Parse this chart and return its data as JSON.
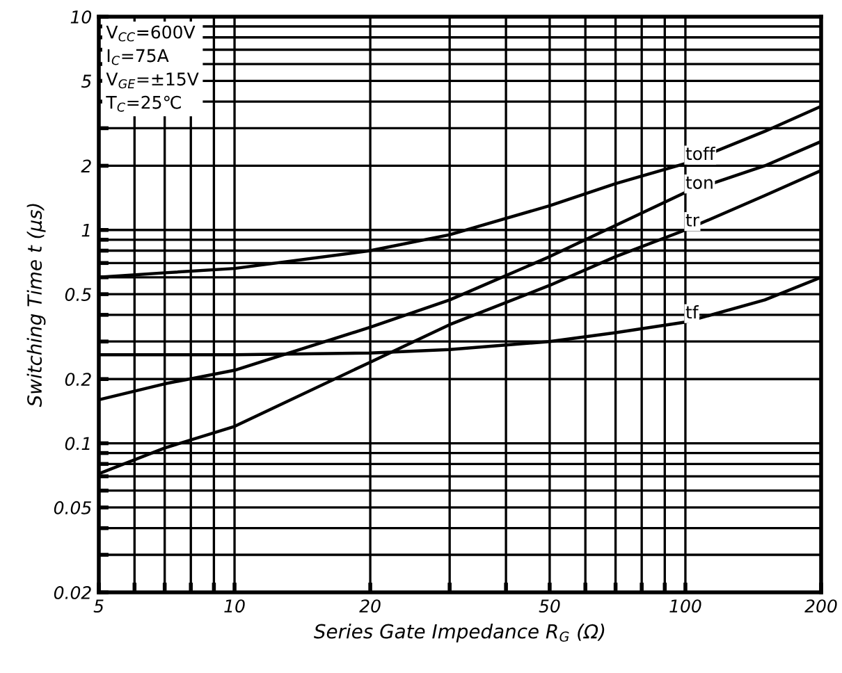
{
  "chart_data": {
    "type": "line",
    "xlabel": "Series Gate Impedance R$_{G}$ (Ω)",
    "ylabel": "Switching Time t (μs)",
    "log": "xy",
    "grid": true,
    "legend": false,
    "marker": "none",
    "line_style": "solid",
    "xlim": [
      5,
      200
    ],
    "ylim": [
      0.02,
      10
    ],
    "xticks": [
      5,
      {
        "value": 6,
        "label": null
      },
      {
        "value": 7,
        "label": null
      },
      {
        "value": 8,
        "label": null
      },
      {
        "value": 9,
        "label": null
      },
      10,
      20,
      {
        "value": 30,
        "label": null
      },
      {
        "value": 40,
        "label": null
      },
      50,
      {
        "value": 60,
        "label": null
      },
      {
        "value": 70,
        "label": null
      },
      {
        "value": 80,
        "label": null
      },
      {
        "value": 90,
        "label": null
      },
      100,
      200
    ],
    "yticks": [
      0.02,
      {
        "value": 0.03,
        "label": null
      },
      {
        "value": 0.04,
        "label": null
      },
      0.05,
      {
        "value": 0.06,
        "label": null
      },
      {
        "value": 0.07,
        "label": null
      },
      {
        "value": 0.08,
        "label": null
      },
      {
        "value": 0.09,
        "label": null
      },
      0.1,
      0.2,
      {
        "value": 0.3,
        "label": null
      },
      {
        "value": 0.4,
        "label": null
      },
      0.5,
      {
        "value": 0.6,
        "label": null
      },
      {
        "value": 0.7,
        "label": null
      },
      {
        "value": 0.8,
        "label": null
      },
      {
        "value": 0.9,
        "label": null
      },
      1,
      2,
      {
        "value": 3,
        "label": null
      },
      {
        "value": 4,
        "label": null
      },
      5,
      {
        "value": 6,
        "label": null
      },
      {
        "value": 7,
        "label": null
      },
      {
        "value": 8,
        "label": null
      },
      {
        "value": 9,
        "label": null
      },
      10
    ],
    "x": [
      5,
      7,
      10,
      20,
      30,
      50,
      70,
      100,
      150,
      200
    ],
    "series": [
      {
        "name": "toff",
        "color": "#000000",
        "values": [
          0.6,
          0.63,
          0.66,
          0.8,
          0.95,
          1.3,
          1.65,
          2.05,
          2.9,
          3.8
        ]
      },
      {
        "name": "ton",
        "color": "#000000",
        "values": [
          0.16,
          0.19,
          0.22,
          0.35,
          0.47,
          0.75,
          1.05,
          1.5,
          2.0,
          2.6
        ]
      },
      {
        "name": "tr",
        "color": "#000000",
        "values": [
          0.072,
          0.095,
          0.12,
          0.24,
          0.36,
          0.55,
          0.75,
          1.0,
          1.45,
          1.9
        ]
      },
      {
        "name": "tf",
        "color": "#000000",
        "values": [
          0.26,
          0.26,
          0.26,
          0.265,
          0.275,
          0.3,
          0.33,
          0.37,
          0.47,
          0.6
        ]
      }
    ],
    "annotations": [
      "V$_{CC}$=600V\nI$_{C}$=75A\nV$_{GE}$=±15V\nT$_{C}$=25℃"
    ]
  }
}
